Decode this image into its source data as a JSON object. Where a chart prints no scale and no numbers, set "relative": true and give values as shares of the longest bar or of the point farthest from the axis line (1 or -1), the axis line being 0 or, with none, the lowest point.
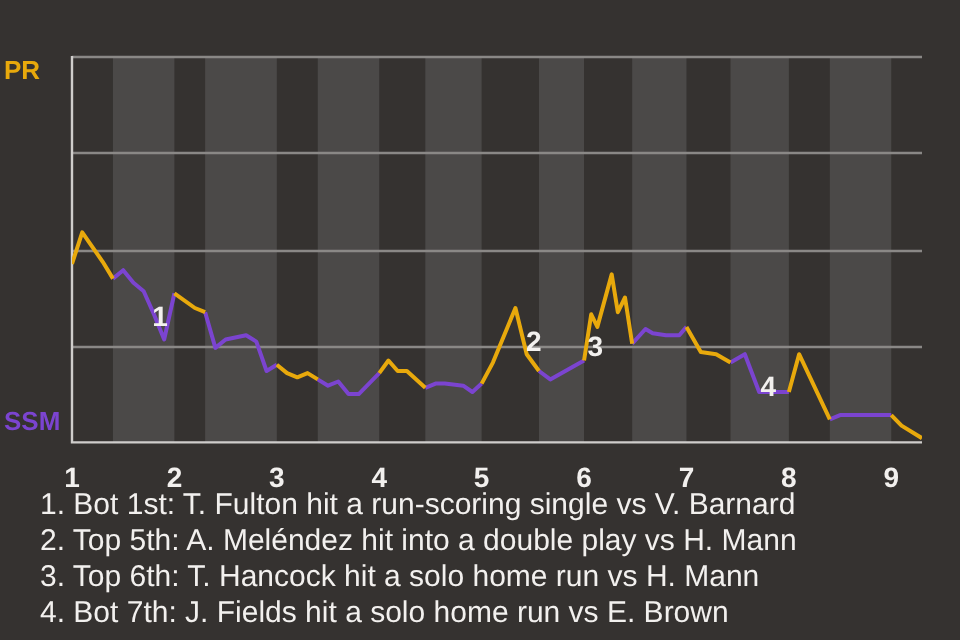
{
  "chart_data": {
    "type": "line",
    "relative": true,
    "legend": false,
    "marker": "none",
    "line_style": "solid",
    "ref_lines": [
      {
        "axis": "y",
        "value": 0.46,
        "color": "#8a8886"
      },
      {
        "axis": "y",
        "value": 0.92,
        "color": "#8a8886"
      },
      {
        "axis": "y",
        "value": 1.38,
        "color": "#8a8886"
      },
      {
        "axis": "y",
        "value": 1.84,
        "color": "#8a8886"
      }
    ],
    "x": [
      1.0,
      1.1,
      1.2,
      1.3,
      1.4,
      1.5,
      1.6,
      1.7,
      1.8,
      1.9,
      2.0,
      2.2,
      2.3,
      2.4,
      2.5,
      2.7,
      2.8,
      2.9,
      3.0,
      3.1,
      3.2,
      3.3,
      3.4,
      3.5,
      3.6,
      3.7,
      3.8,
      4.0,
      4.09,
      4.18,
      4.27,
      4.45,
      4.55,
      4.64,
      4.82,
      4.91,
      5.0,
      5.11,
      5.33,
      5.44,
      5.56,
      5.67,
      6.0,
      6.07,
      6.13,
      6.27,
      6.33,
      6.4,
      6.47,
      6.6,
      6.67,
      6.8,
      6.93,
      7.0,
      7.14,
      7.29,
      7.43,
      7.57,
      7.71,
      8.0,
      8.1,
      8.4,
      8.5,
      9.0,
      9.1,
      9.3
    ],
    "xlim": [
      1,
      9.3
    ],
    "bands": [
      {
        "axis": "x",
        "from": 1.4,
        "to": 2.0,
        "color": "#4b4948"
      },
      {
        "axis": "x",
        "from": 2.3,
        "to": 3.0,
        "color": "#4b4948"
      },
      {
        "axis": "x",
        "from": 3.4,
        "to": 4.0,
        "color": "#4b4948"
      },
      {
        "axis": "x",
        "from": 4.45,
        "to": 5.0,
        "color": "#4b4948"
      },
      {
        "axis": "x",
        "from": 5.56,
        "to": 6.0,
        "color": "#4b4948"
      },
      {
        "axis": "x",
        "from": 6.47,
        "to": 7.0,
        "color": "#4b4948"
      },
      {
        "axis": "x",
        "from": 7.43,
        "to": 8.0,
        "color": "#4b4948"
      },
      {
        "axis": "x",
        "from": 8.4,
        "to": 9.0,
        "color": "#4b4948"
      }
    ],
    "xticks": [
      1,
      2,
      3,
      4,
      5,
      6,
      7,
      8,
      9
    ],
    "series": [
      {
        "name": "PR",
        "color": "#e8a90c",
        "values": [
          0.85,
          1.0,
          0.93,
          0.86,
          0.78,
          null,
          null,
          null,
          null,
          null,
          0.71,
          0.64,
          0.62,
          null,
          null,
          null,
          null,
          null,
          0.37,
          0.33,
          0.31,
          0.33,
          0.3,
          null,
          null,
          null,
          null,
          0.33,
          0.39,
          0.34,
          0.34,
          0.26,
          null,
          null,
          null,
          null,
          0.28,
          0.38,
          0.64,
          0.42,
          0.34,
          null,
          0.39,
          0.61,
          0.55,
          0.8,
          0.62,
          0.69,
          0.47,
          null,
          null,
          null,
          null,
          0.55,
          0.43,
          0.42,
          0.38,
          null,
          null,
          0.24,
          0.42,
          0.11,
          null,
          0.13,
          0.08,
          0.02
        ]
      },
      {
        "name": "SSM",
        "color": "#7b44d0",
        "values": [
          null,
          null,
          null,
          null,
          0.78,
          0.82,
          0.76,
          0.72,
          0.61,
          0.49,
          0.71,
          null,
          0.62,
          0.45,
          0.49,
          0.51,
          0.48,
          0.34,
          0.37,
          null,
          null,
          null,
          0.3,
          0.27,
          0.29,
          0.23,
          0.23,
          0.33,
          null,
          null,
          null,
          0.26,
          0.28,
          0.28,
          0.27,
          0.24,
          0.28,
          null,
          null,
          null,
          0.34,
          0.3,
          0.39,
          null,
          null,
          null,
          null,
          null,
          0.47,
          0.54,
          0.52,
          0.51,
          0.51,
          0.55,
          null,
          null,
          0.38,
          0.42,
          0.24,
          0.24,
          null,
          0.11,
          0.13,
          0.13,
          null,
          null
        ]
      }
    ],
    "annotations": [
      {
        "text": "1",
        "x": 1.86,
        "y": 0.59
      },
      {
        "text": "2",
        "x": 5.51,
        "y": 0.47
      },
      {
        "text": "3",
        "x": 6.11,
        "y": 0.45
      },
      {
        "text": "4",
        "x": 7.8,
        "y": 0.26
      },
      "1. Bot 1st: T. Fulton hit a run-scoring single vs V. Barnard",
      "2. Top 5th: A. Meléndez hit into a double play vs H. Mann",
      "3. Top 6th: T. Hancock hit a solo home run vs H. Mann",
      "4. Bot 7th: J. Fields hit a solo home run vs E. Brown"
    ]
  }
}
